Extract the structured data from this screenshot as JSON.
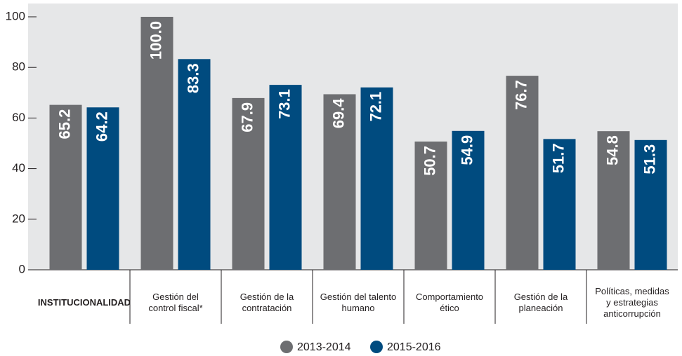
{
  "chart_data": {
    "type": "bar",
    "categories": [
      [
        "INSTITUCIONALIDAD"
      ],
      [
        "Gestión del",
        "control fiscal*"
      ],
      [
        "Gestión de la",
        "contratación"
      ],
      [
        "Gestión del talento",
        "humano"
      ],
      [
        "Comportamiento",
        "ético"
      ],
      [
        "Gestión de la",
        "planeación"
      ],
      [
        "Políticas, medidas",
        "y estrategias",
        "anticorrupción"
      ]
    ],
    "series": [
      {
        "name": "2013-2014",
        "color": "#6d6e71",
        "values": [
          65.2,
          100,
          67.9,
          69.4,
          50.7,
          76.7,
          54.8
        ],
        "value_labels": [
          "65.2",
          "100.0",
          "67.9",
          "69.4",
          "50.7",
          "76.7",
          "54.8"
        ]
      },
      {
        "name": "2015-2016",
        "color": "#004b7f",
        "values": [
          64.2,
          83.3,
          73.1,
          72.1,
          54.9,
          51.7,
          51.3
        ],
        "value_labels": [
          "64.2",
          "83.3",
          "73.1",
          "72.1",
          "54.9",
          "51.7",
          "51.3"
        ]
      }
    ],
    "ylim": [
      0,
      100
    ],
    "yticks": [
      0,
      20,
      40,
      60,
      80,
      100
    ],
    "grid": false,
    "legend": "bottom"
  }
}
